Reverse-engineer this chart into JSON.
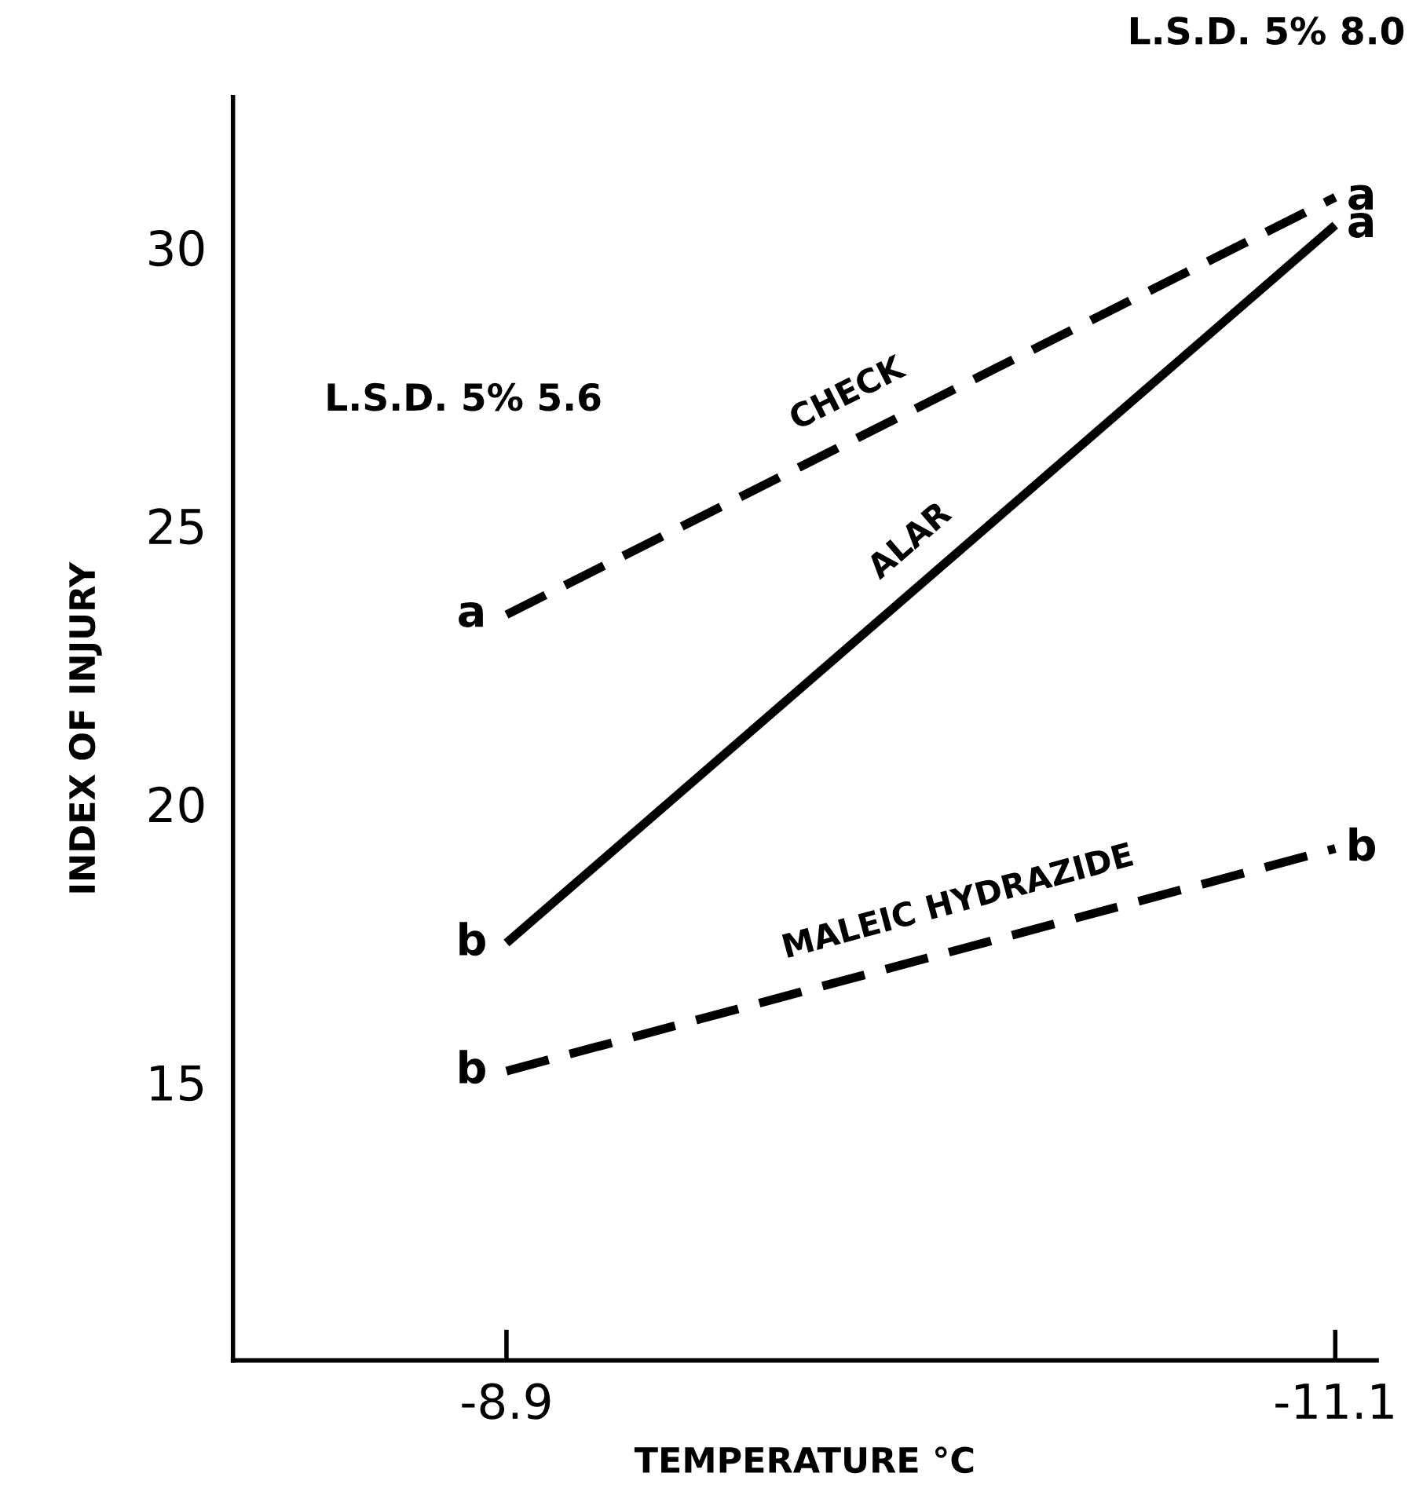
{
  "chart_data": {
    "type": "line",
    "xlabel": "TEMPERATURE °C",
    "ylabel": "INDEX OF INJURY",
    "categories": [
      "-8.9",
      "-11.1"
    ],
    "series": [
      {
        "name": "CHECK",
        "color": "#000000",
        "values": [
          23.4,
          30.9
        ],
        "line_style": "dashed"
      },
      {
        "name": "ALAR",
        "color": "#000000",
        "values": [
          17.5,
          30.4
        ],
        "line_style": "solid"
      },
      {
        "name": "MALEIC HYDRAZIDE",
        "color": "#000000",
        "values": [
          15.2,
          19.2
        ],
        "line_style": "dashed"
      }
    ],
    "ylim": [
      10,
      32.7
    ],
    "yticks": [
      15,
      20,
      25,
      30
    ],
    "grid": false,
    "legend": false,
    "marker": "none",
    "annotations": [
      "L.S.D. 5% 5.6",
      "L.S.D. 5% 8.0",
      {
        "text": "a",
        "x": "-8.9",
        "y": 23.4
      },
      {
        "text": "a",
        "x": "-11.1",
        "y": 30.9
      },
      {
        "text": "b",
        "x": "-8.9",
        "y": 17.5
      },
      {
        "text": "a",
        "x": "-11.1",
        "y": 30.4
      },
      {
        "text": "b",
        "x": "-8.9",
        "y": 15.2
      },
      {
        "text": "b",
        "x": "-11.1",
        "y": 19.2
      }
    ]
  }
}
